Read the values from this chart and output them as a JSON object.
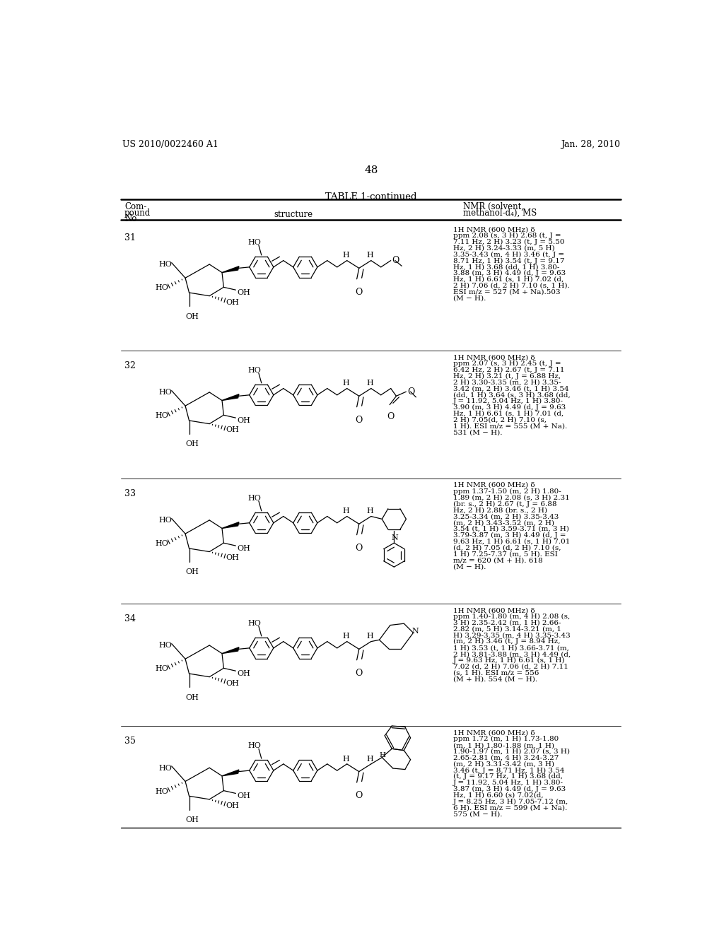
{
  "page_header_left": "US 2010/0022460 A1",
  "page_header_right": "Jan. 28, 2010",
  "page_number": "48",
  "table_title": "TABLE 1-continued",
  "bg_color": "#ffffff",
  "compounds": [
    {
      "no": "31",
      "nmr": "1H NMR (600 MHz) δ\nppm 2.08 (s, 3 H) 2.68 (t, J =\n7.11 Hz, 2 H) 3.23 (t, J = 5.50\nHz, 2 H) 3.24-3.33 (m, 5 H)\n3.35-3.43 (m, 4 H) 3.46 (t, J =\n8.71 Hz, 1 H) 3.54 (t, J = 9.17\nHz, 1 H) 3.68 (dd, 1 H) 3.80-\n3.88 (m, 3 H) 4.49 (d, J = 9.63\nHz, 1 H) 6.61 (s, 1 H) 7.02 (d,\n2 H) 7.06 (d, 2 H) 7.10 (s, 1 H).\nESI m/z = 527 (M + Na).503\n(M − H)."
    },
    {
      "no": "32",
      "nmr": "1H NMR (600 MHz) δ\nppm 2.07 (s, 3 H) 2.45 (t, J =\n6.42 Hz, 2 H) 2.67 (t, J = 7.11\nHz, 2 H) 3.21 (t, J = 6.88 Hz,\n2 H) 3.30-3.35 (m, 2 H) 3.35-\n3.42 (m, 2 H) 3.46 (t, 1 H) 3.54\n(dd, 1 H) 3.64 (s, 3 H) 3.68 (dd,\nJ = 11.92, 5.04 Hz, 1 H) 3.80-\n3.90 (m, 3 H) 4.49 (d, J = 9.63\nHz, 1 H) 6.61 (s, 1 H) 7.01 (d,\n2 H) 7.05(d, 2 H) 7.10 (s,\n1 H). ESI m/z = 555 (M + Na).\n531 (M − H)."
    },
    {
      "no": "33",
      "nmr": "1H NMR (600 MHz) δ\nppm 1.37-1.50 (m, 2 H) 1.80-\n1.89 (m, 2 H) 2.08 (s, 3 H) 2.31\n(br. s., 2 H) 2.67 (t, J = 6.88\nHz, 2 H) 2.88 (br. s., 2 H)\n3.25-3.34 (m, 2 H) 3.35-3.43\n(m, 2 H) 3.43-3.52 (m, 2 H)\n3.54 (t, 1 H) 3.59-3.71 (m, 3 H)\n3.79-3.87 (m, 3 H) 4.49 (d, J =\n9.63 Hz, 1 H) 6.61 (s, 1 H) 7.01\n(d, 2 H) 7.05 (d, 2 H) 7.10 (s,\n1 H) 7.25-7.37 (m, 5 H). ESI\nm/z = 620 (M + H). 618\n(M − H)."
    },
    {
      "no": "34",
      "nmr": "1H NMR (600 MHz) δ\nppm 1.40-1.80 (m, 4 H) 2.08 (s,\n3 H) 2.35-2.42 (m, 1 H) 2.66-\n2.82 (m, 5 H) 3.14-3.21 (m, 1\nH) 3.29-3.35 (m, 4 H) 3.35-3.43\n(m, 2 H) 3.46 (t, J = 8.94 Hz,\n1 H) 3.53 (t, 1 H) 3.66-3.71 (m,\n2 H) 3.81-3.88 (m, 3 H) 4.49 (d,\nJ = 9.63 Hz, 1 H) 6.61 (s, 1 H)\n7.02 (d, 2 H) 7.06 (d, 2 H) 7.11\n(s, 1 H). ESI m/z = 556\n(M + H). 554 (M − H)."
    },
    {
      "no": "35",
      "nmr": "1H NMR (600 MHz) δ\nppm 1.72 (m, 1 H) 1.73-1.80\n(m, 1 H) 1.80-1.88 (m, 1 H)\n1.90-1.97 (m, 1 H) 2.07 (s, 3 H)\n2.65-2.81 (m, 4 H) 3.24-3.27\n(m, 2 H) 3.31-3.42 (m, 3 H)\n3.46 (t, J = 8.71 Hz, 1 H) 3.54\n(t, J = 9.17 Hz, 1 H) 3.68 (dd,\nJ = 11.92, 5.04 Hz, 1 H) 3.80-\n3.87 (m, 3 H) 4.49 (d, J = 9.63\nHz, 1 H) 6.60 (s) 7.02(d,\nJ = 8.25 Hz, 3 H) 7.05-7.12 (m,\n6 H). ESI m/z = 599 (M + Na).\n575 (M − H)."
    }
  ]
}
